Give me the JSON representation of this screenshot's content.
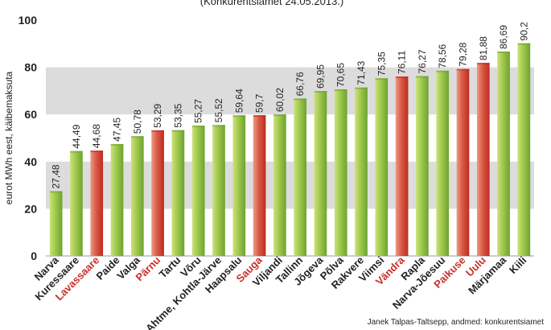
{
  "chart_data": {
    "type": "bar",
    "subtitle": "(Konkurentsiamet 24.05.2013.)",
    "ylabel": "eurot MWh eest, käibemaksuta",
    "ylim": [
      0,
      100
    ],
    "yticks": [
      0,
      20,
      40,
      60,
      80,
      100
    ],
    "grid_bands": [
      [
        20,
        40
      ],
      [
        60,
        80
      ]
    ],
    "categories": [
      "Narva",
      "Kuressaare",
      "Lavassaare",
      "Paide",
      "Valga",
      "Pärnu",
      "Tartu",
      "Võru",
      "Ahtme, Kohtla-Järve",
      "Haapsalu",
      "Sauga",
      "Viljandi",
      "Tallinn",
      "Jõgeva",
      "Põlva",
      "Rakvere",
      "Viimsi",
      "Vändra",
      "Rapla",
      "Narva-Jõesuu",
      "Paikuse",
      "Uulu",
      "Märjamaa",
      "Kiili"
    ],
    "values": [
      27.48,
      44.49,
      44.68,
      47.45,
      50.78,
      53.29,
      53.35,
      55.27,
      55.52,
      59.64,
      59.7,
      60.02,
      66.76,
      69.95,
      70.65,
      71.43,
      75.35,
      76.11,
      76.27,
      78.56,
      79.28,
      81.88,
      86.69,
      90.2
    ],
    "value_labels": [
      "27,48",
      "44,49",
      "44,68",
      "47,45",
      "50,78",
      "53,29",
      "53,35",
      "55,27",
      "55,52",
      "59,64",
      "59,7",
      "60,02",
      "66,76",
      "69,95",
      "70,65",
      "71,43",
      "75,35",
      "76,11",
      "76,27",
      "78,56",
      "79,28",
      "81,88",
      "86,69",
      "90,2"
    ],
    "highlighted": [
      "Lavassaare",
      "Pärnu",
      "Sauga",
      "Vändra",
      "Paikuse",
      "Uulu"
    ],
    "colors": {
      "green_light": "#cde27a",
      "green_dark": "#6da32f",
      "red_light": "#ee9a85",
      "red_dark": "#bf2b22",
      "band": "#dcdcdc",
      "highlight_text": "#c8302a"
    },
    "credit": "Janek Talpas-Taltsepp, andmed: konkurentsiamet"
  }
}
